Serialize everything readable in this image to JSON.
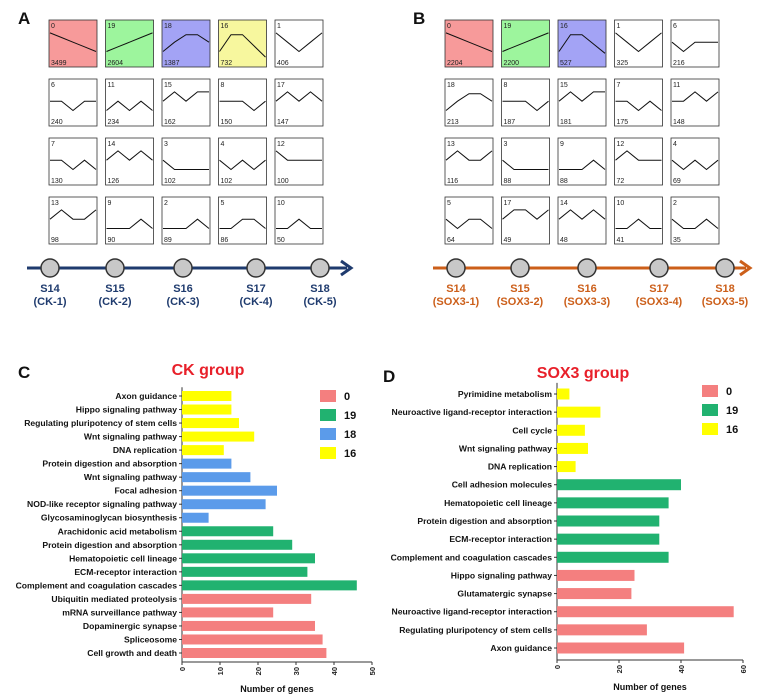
{
  "chart_data": [
    {
      "id": "A",
      "type": "profile-grid",
      "panel_label": "A",
      "clusters": [
        {
          "id": "0",
          "count": "3499",
          "color": "#f79a9a",
          "profile": [
            3,
            2.5,
            2,
            1.5,
            1
          ]
        },
        {
          "id": "19",
          "count": "2604",
          "color": "#9df59d",
          "profile": [
            1,
            1.5,
            2,
            2.5,
            3
          ]
        },
        {
          "id": "18",
          "count": "1387",
          "color": "#a3a3f5",
          "profile": [
            1,
            2,
            2.8,
            2.8,
            2
          ]
        },
        {
          "id": "16",
          "count": "732",
          "color": "#f7f79e",
          "profile": [
            1,
            2.8,
            2.8,
            1.6,
            0.4
          ]
        },
        {
          "id": "1",
          "count": "406",
          "color": "#ffffff",
          "profile": [
            3,
            2,
            1,
            2,
            3
          ]
        },
        {
          "id": "6",
          "count": "240",
          "color": "#ffffff",
          "profile": [
            2,
            2,
            1,
            2,
            2
          ]
        },
        {
          "id": "11",
          "count": "234",
          "color": "#ffffff",
          "profile": [
            1,
            2,
            1,
            2,
            1
          ]
        },
        {
          "id": "15",
          "count": "162",
          "color": "#ffffff",
          "profile": [
            2,
            3,
            2,
            3,
            3
          ]
        },
        {
          "id": "8",
          "count": "150",
          "color": "#ffffff",
          "profile": [
            2,
            2,
            2,
            1,
            2
          ]
        },
        {
          "id": "17",
          "count": "147",
          "color": "#ffffff",
          "profile": [
            2,
            3,
            2,
            3,
            2
          ]
        },
        {
          "id": "7",
          "count": "130",
          "color": "#ffffff",
          "profile": [
            2,
            2,
            1,
            2,
            1
          ]
        },
        {
          "id": "14",
          "count": "126",
          "color": "#ffffff",
          "profile": [
            2,
            3,
            2,
            3,
            2
          ]
        },
        {
          "id": "3",
          "count": "102",
          "color": "#ffffff",
          "profile": [
            2,
            1,
            1,
            1,
            1
          ]
        },
        {
          "id": "4",
          "count": "102",
          "color": "#ffffff",
          "profile": [
            2,
            1,
            2,
            1,
            2
          ]
        },
        {
          "id": "12",
          "count": "100",
          "color": "#ffffff",
          "profile": [
            3,
            2,
            2,
            2,
            2
          ]
        },
        {
          "id": "13",
          "count": "98",
          "color": "#ffffff",
          "profile": [
            2,
            3,
            2,
            2,
            3
          ]
        },
        {
          "id": "9",
          "count": "90",
          "color": "#ffffff",
          "profile": [
            1,
            1,
            1,
            2,
            1
          ]
        },
        {
          "id": "2",
          "count": "89",
          "color": "#ffffff",
          "profile": [
            1,
            1,
            1,
            2,
            1
          ]
        },
        {
          "id": "5",
          "count": "86",
          "color": "#ffffff",
          "profile": [
            1,
            1,
            2,
            2,
            1
          ]
        },
        {
          "id": "10",
          "count": "50",
          "color": "#ffffff",
          "profile": [
            1,
            1,
            2,
            1,
            1
          ]
        }
      ],
      "timeline": {
        "color": "#1f3b6e",
        "stages": [
          {
            "stage": "S14",
            "sample": "(CK-1)"
          },
          {
            "stage": "S15",
            "sample": "(CK-2)"
          },
          {
            "stage": "S16",
            "sample": "(CK-3)"
          },
          {
            "stage": "S17",
            "sample": "(CK-4)"
          },
          {
            "stage": "S18",
            "sample": "(CK-5)"
          }
        ]
      }
    },
    {
      "id": "B",
      "type": "profile-grid",
      "panel_label": "B",
      "clusters": [
        {
          "id": "0",
          "count": "2204",
          "color": "#f79a9a",
          "profile": [
            3,
            2.5,
            2,
            1.5,
            1
          ]
        },
        {
          "id": "19",
          "count": "2200",
          "color": "#9df59d",
          "profile": [
            1,
            1.5,
            2,
            2.5,
            3
          ]
        },
        {
          "id": "16",
          "count": "527",
          "color": "#a3a3f5",
          "profile": [
            1,
            2.8,
            2.8,
            1.8,
            0.8
          ]
        },
        {
          "id": "1",
          "count": "325",
          "color": "#ffffff",
          "profile": [
            3,
            2,
            1,
            2,
            3
          ]
        },
        {
          "id": "6",
          "count": "216",
          "color": "#ffffff",
          "profile": [
            2,
            1,
            2,
            2,
            2
          ]
        },
        {
          "id": "18",
          "count": "213",
          "color": "#ffffff",
          "profile": [
            1,
            2,
            2.8,
            2.8,
            2
          ]
        },
        {
          "id": "8",
          "count": "187",
          "color": "#ffffff",
          "profile": [
            2,
            2,
            2,
            1,
            2
          ]
        },
        {
          "id": "15",
          "count": "181",
          "color": "#ffffff",
          "profile": [
            2,
            3,
            2,
            3,
            3
          ]
        },
        {
          "id": "7",
          "count": "175",
          "color": "#ffffff",
          "profile": [
            2,
            2,
            1,
            2,
            1
          ]
        },
        {
          "id": "11",
          "count": "148",
          "color": "#ffffff",
          "profile": [
            2,
            2,
            3,
            2,
            3
          ]
        },
        {
          "id": "13",
          "count": "116",
          "color": "#ffffff",
          "profile": [
            2,
            3,
            2,
            2,
            3
          ]
        },
        {
          "id": "3",
          "count": "88",
          "color": "#ffffff",
          "profile": [
            2,
            1,
            1,
            1,
            1
          ]
        },
        {
          "id": "9",
          "count": "88",
          "color": "#ffffff",
          "profile": [
            1,
            1,
            1,
            2,
            1
          ]
        },
        {
          "id": "12",
          "count": "72",
          "color": "#ffffff",
          "profile": [
            2,
            3,
            2,
            2,
            2
          ]
        },
        {
          "id": "4",
          "count": "69",
          "color": "#ffffff",
          "profile": [
            2,
            1,
            2,
            1,
            2
          ]
        },
        {
          "id": "5",
          "count": "64",
          "color": "#ffffff",
          "profile": [
            2,
            1,
            2,
            2,
            1
          ]
        },
        {
          "id": "17",
          "count": "49",
          "color": "#ffffff",
          "profile": [
            2,
            3,
            3,
            2,
            3
          ]
        },
        {
          "id": "14",
          "count": "48",
          "color": "#ffffff",
          "profile": [
            2,
            3,
            2,
            3,
            2
          ]
        },
        {
          "id": "10",
          "count": "41",
          "color": "#ffffff",
          "profile": [
            1,
            1,
            2,
            1,
            1
          ]
        },
        {
          "id": "2",
          "count": "35",
          "color": "#ffffff",
          "profile": [
            2,
            1,
            1,
            2,
            1
          ]
        }
      ],
      "timeline": {
        "color": "#cc5f1a",
        "stages": [
          {
            "stage": "S14",
            "sample": "(SOX3-1)"
          },
          {
            "stage": "S15",
            "sample": "(SOX3-2)"
          },
          {
            "stage": "S16",
            "sample": "(SOX3-3)"
          },
          {
            "stage": "S17",
            "sample": "(SOX3-4)"
          },
          {
            "stage": "S18",
            "sample": "(SOX3-5)"
          }
        ]
      }
    },
    {
      "id": "C",
      "type": "bar",
      "orientation": "horizontal",
      "panel_label": "C",
      "title": "CK group",
      "xlabel": "Number of genes",
      "xlim": [
        0,
        50
      ],
      "xticks": [
        0,
        10,
        20,
        30,
        40,
        50
      ],
      "legend": [
        {
          "label": "0",
          "color": "#f47f7f"
        },
        {
          "label": "19",
          "color": "#21b270"
        },
        {
          "label": "18",
          "color": "#5b9bea"
        },
        {
          "label": "16",
          "color": "#ffff00"
        }
      ],
      "categories": [
        "Axon guidance",
        "Hippo signaling pathway",
        "Regulating pluripotency of stem cells",
        "Wnt signaling pathway",
        "DNA replication",
        "Protein digestion and absorption",
        "Wnt signaling pathway",
        "Focal adhesion",
        "NOD-like receptor signaling pathway",
        "Glycosaminoglycan biosynthesis",
        "Arachidonic acid metabolism",
        "Protein digestion and absorption",
        "Hematopoietic cell lineage",
        "ECM-receptor interaction",
        "Complement and coagulation cascades",
        "Ubiquitin mediated proteolysis",
        "mRNA surveillance pathway",
        "Dopaminergic synapse",
        "Spliceosome",
        "Cell growth and death"
      ],
      "values": [
        13,
        13,
        15,
        19,
        11,
        13,
        18,
        25,
        22,
        7,
        24,
        29,
        35,
        33,
        46,
        34,
        24,
        35,
        37,
        38
      ],
      "groups": [
        "16",
        "16",
        "16",
        "16",
        "16",
        "18",
        "18",
        "18",
        "18",
        "18",
        "19",
        "19",
        "19",
        "19",
        "19",
        "0",
        "0",
        "0",
        "0",
        "0"
      ]
    },
    {
      "id": "D",
      "type": "bar",
      "orientation": "horizontal",
      "panel_label": "D",
      "title": "SOX3 group",
      "xlabel": "Number of genes",
      "xlim": [
        0,
        60
      ],
      "xticks": [
        0,
        20,
        40,
        60
      ],
      "legend": [
        {
          "label": "0",
          "color": "#f47f7f"
        },
        {
          "label": "19",
          "color": "#21b270"
        },
        {
          "label": "16",
          "color": "#ffff00"
        }
      ],
      "categories": [
        "Pyrimidine metabolism",
        "Neuroactive ligand-receptor interaction",
        "Cell cycle",
        "Wnt signaling pathway",
        "DNA replication",
        "Cell adhesion molecules",
        "Hematopoietic cell lineage",
        "Protein digestion and absorption",
        "ECM-receptor interaction",
        "Complement and coagulation cascades",
        "Hippo signaling pathway",
        "Glutamatergic synapse",
        "Neuroactive ligand-receptor interaction",
        "Regulating pluripotency of stem cells",
        "Axon guidance"
      ],
      "values": [
        4,
        14,
        9,
        10,
        6,
        40,
        36,
        33,
        33,
        36,
        25,
        24,
        57,
        29,
        41
      ],
      "groups": [
        "16",
        "16",
        "16",
        "16",
        "16",
        "19",
        "19",
        "19",
        "19",
        "19",
        "0",
        "0",
        "0",
        "0",
        "0"
      ]
    }
  ]
}
